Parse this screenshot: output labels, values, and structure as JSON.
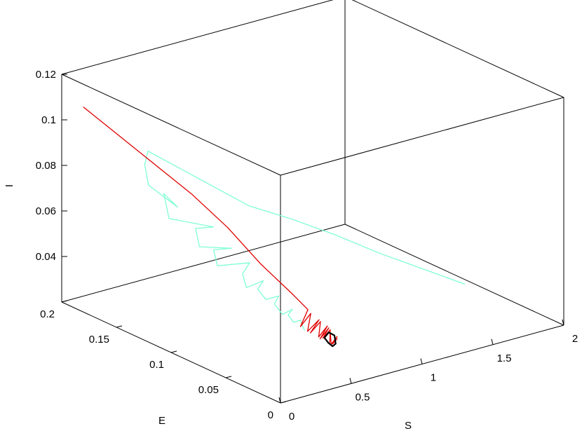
{
  "chart_data": {
    "type": "line",
    "title": "",
    "xlabel": "S",
    "ylabel": "E",
    "zlabel": "I",
    "xlim": [
      0,
      2
    ],
    "ylim": [
      0,
      0.2
    ],
    "zlim": [
      0.02,
      0.12
    ],
    "x_ticks": [
      "0",
      "0.5",
      "1",
      "1.5",
      "2"
    ],
    "y_ticks": [
      "0",
      "0.05",
      "0.1",
      "0.15",
      "0.2"
    ],
    "z_ticks": [
      "0.04",
      "0.06",
      "0.08",
      "0.1",
      "0.12"
    ],
    "grid": false,
    "series": [
      {
        "color": "#7fffd4",
        "width": 1.3,
        "points": [
          [
            1.3,
            0.0,
            0.05
          ],
          [
            1.15,
            0.02,
            0.055
          ],
          [
            1.0,
            0.04,
            0.06
          ],
          [
            0.85,
            0.06,
            0.066
          ],
          [
            0.7,
            0.08,
            0.071
          ],
          [
            0.55,
            0.1,
            0.075
          ],
          [
            0.3,
            0.16,
            0.09
          ],
          [
            0.2,
            0.15,
            0.088
          ],
          [
            0.15,
            0.14,
            0.082
          ],
          [
            0.2,
            0.12,
            0.076
          ],
          [
            0.18,
            0.13,
            0.08
          ],
          [
            0.14,
            0.12,
            0.072
          ],
          [
            0.3,
            0.1,
            0.07
          ],
          [
            0.25,
            0.11,
            0.068
          ],
          [
            0.2,
            0.1,
            0.063
          ],
          [
            0.35,
            0.09,
            0.062
          ],
          [
            0.3,
            0.1,
            0.06
          ],
          [
            0.25,
            0.09,
            0.056
          ],
          [
            0.4,
            0.08,
            0.057
          ],
          [
            0.35,
            0.08,
            0.053
          ],
          [
            0.3,
            0.07,
            0.05
          ],
          [
            0.42,
            0.07,
            0.051
          ],
          [
            0.38,
            0.07,
            0.048
          ],
          [
            0.36,
            0.06,
            0.046
          ],
          [
            0.45,
            0.06,
            0.046
          ],
          [
            0.42,
            0.06,
            0.043
          ],
          [
            0.4,
            0.05,
            0.041
          ],
          [
            0.47,
            0.05,
            0.042
          ],
          [
            0.44,
            0.05,
            0.04
          ],
          [
            0.44,
            0.045,
            0.038
          ],
          [
            0.49,
            0.045,
            0.038
          ],
          [
            0.47,
            0.04,
            0.036
          ],
          [
            0.48,
            0.04,
            0.035
          ]
        ]
      },
      {
        "color": "#e00000",
        "width": 1.3,
        "points": [
          [
            0.0,
            0.18,
            0.11
          ],
          [
            0.1,
            0.16,
            0.1
          ],
          [
            0.2,
            0.14,
            0.09
          ],
          [
            0.3,
            0.12,
            0.08
          ],
          [
            0.4,
            0.1,
            0.068
          ],
          [
            0.48,
            0.08,
            0.055
          ],
          [
            0.55,
            0.06,
            0.045
          ],
          [
            0.58,
            0.05,
            0.04
          ],
          [
            0.45,
            0.04,
            0.037
          ],
          [
            0.6,
            0.05,
            0.038
          ],
          [
            0.5,
            0.04,
            0.034
          ],
          [
            0.62,
            0.045,
            0.036
          ],
          [
            0.52,
            0.04,
            0.033
          ],
          [
            0.63,
            0.045,
            0.035
          ],
          [
            0.54,
            0.035,
            0.032
          ],
          [
            0.64,
            0.04,
            0.034
          ],
          [
            0.55,
            0.035,
            0.031
          ],
          [
            0.65,
            0.04,
            0.033
          ],
          [
            0.57,
            0.035,
            0.031
          ],
          [
            0.66,
            0.04,
            0.032
          ],
          [
            0.58,
            0.03,
            0.03
          ],
          [
            0.66,
            0.04,
            0.031
          ],
          [
            0.59,
            0.03,
            0.029
          ],
          [
            0.67,
            0.035,
            0.03
          ],
          [
            0.6,
            0.03,
            0.029
          ],
          [
            0.67,
            0.035,
            0.029
          ]
        ]
      },
      {
        "color": "#000000",
        "width": 2.2,
        "points": [
          [
            0.58,
            0.035,
            0.031
          ],
          [
            0.65,
            0.04,
            0.031
          ],
          [
            0.69,
            0.04,
            0.029
          ],
          [
            0.66,
            0.035,
            0.027
          ],
          [
            0.6,
            0.03,
            0.028
          ],
          [
            0.57,
            0.03,
            0.03
          ],
          [
            0.58,
            0.035,
            0.031
          ]
        ]
      }
    ]
  }
}
